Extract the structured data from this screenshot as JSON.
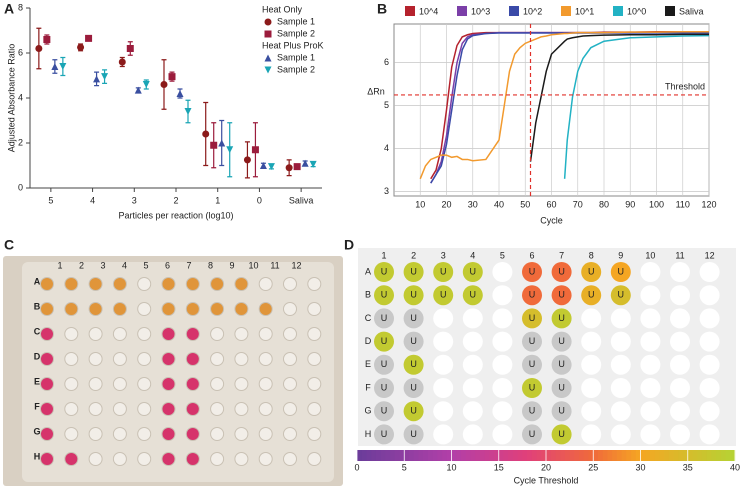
{
  "chart_data": [
    {
      "type": "errorbar",
      "panel": "A",
      "ylabel": "Adjusted Absorbance Ratio",
      "xlabel": "Particles per reaction (log10)",
      "categories": [
        "5",
        "4",
        "3",
        "2",
        "1",
        "0",
        "Saliva"
      ],
      "ylim": [
        0,
        8
      ],
      "yticks": [
        0,
        2,
        4,
        6,
        8
      ],
      "legend_groups": [
        "Heat Only",
        "Heat Plus ProK"
      ],
      "series": [
        {
          "name": "Sample 1",
          "color": "#8b1a1a",
          "marker": "circle",
          "values": [
            6.2,
            6.25,
            5.6,
            4.6,
            2.4,
            1.25,
            0.9
          ],
          "errors": [
            0.9,
            0.15,
            0.2,
            1.1,
            1.4,
            0.8,
            0.35
          ]
        },
        {
          "name": "Sample 2",
          "color": "#9b1c3c",
          "marker": "square",
          "values": [
            6.6,
            6.65,
            6.2,
            4.95,
            1.9,
            1.7,
            0.95
          ],
          "errors": [
            0.2,
            0.1,
            0.3,
            0.2,
            1.0,
            1.2,
            0.1
          ]
        },
        {
          "name": "Sample 1",
          "color": "#3a4fa0",
          "marker": "triangle-up",
          "values": [
            5.4,
            4.85,
            4.35,
            4.2,
            2.0,
            1.0,
            1.1
          ],
          "errors": [
            0.3,
            0.3,
            0.1,
            0.2,
            1.0,
            0.1,
            0.1
          ]
        },
        {
          "name": "Sample 2",
          "color": "#1aa5b5",
          "marker": "triangle-down",
          "values": [
            5.4,
            4.95,
            4.6,
            3.4,
            1.7,
            0.95,
            1.05
          ],
          "errors": [
            0.4,
            0.3,
            0.2,
            0.5,
            1.2,
            0.1,
            0.1
          ]
        }
      ]
    },
    {
      "type": "line",
      "panel": "B",
      "xlabel": "Cycle",
      "ylabel": "ΔRn",
      "x": [
        10,
        12,
        14,
        16,
        18,
        20,
        22,
        24,
        26,
        28,
        30,
        35,
        40,
        42,
        44,
        46,
        48,
        50,
        52,
        54,
        56,
        58,
        60,
        65,
        66,
        68,
        70,
        72,
        75,
        80,
        90,
        100,
        110,
        120
      ],
      "xlim": [
        0,
        120
      ],
      "xticks": [
        10,
        20,
        30,
        40,
        50,
        60,
        70,
        80,
        90,
        100,
        110,
        120
      ],
      "ylim": [
        2.9,
        6.9
      ],
      "yticks": [
        3,
        4,
        5,
        6
      ],
      "grid": true,
      "threshold": 5.25,
      "threshold_label": "Threshold",
      "cutoff": 52,
      "series": [
        {
          "name": "10^4",
          "color": "#b5222d",
          "values": [
            null,
            null,
            3.3,
            3.5,
            4.0,
            4.9,
            5.9,
            6.4,
            6.6,
            6.65,
            6.68,
            6.7,
            6.7,
            6.7,
            6.7,
            6.7,
            6.7,
            6.7,
            6.7,
            6.7,
            6.7,
            6.7,
            6.7,
            6.7,
            6.7,
            6.7,
            6.7,
            6.7,
            6.7,
            6.71,
            6.71,
            6.72,
            6.72,
            6.72
          ]
        },
        {
          "name": "10^3",
          "color": "#7b3fa8",
          "values": [
            null,
            null,
            3.2,
            3.4,
            3.7,
            4.3,
            5.2,
            6.0,
            6.45,
            6.6,
            6.65,
            6.68,
            6.7,
            6.7,
            6.7,
            6.7,
            6.7,
            6.7,
            6.7,
            6.7,
            6.7,
            6.7,
            6.7,
            6.7,
            6.7,
            6.7,
            6.7,
            6.7,
            6.7,
            6.7,
            6.7,
            6.7,
            6.7,
            6.7
          ]
        },
        {
          "name": "10^2",
          "color": "#3a4aa8",
          "values": [
            null,
            null,
            3.2,
            3.4,
            3.6,
            4.1,
            4.9,
            5.7,
            6.3,
            6.55,
            6.63,
            6.68,
            6.69,
            6.69,
            6.69,
            6.69,
            6.69,
            6.69,
            6.69,
            6.69,
            6.69,
            6.69,
            6.69,
            6.69,
            6.69,
            6.69,
            6.69,
            6.69,
            6.69,
            6.69,
            6.69,
            6.69,
            6.69,
            6.69
          ]
        },
        {
          "name": "10^1",
          "color": "#f29a2e",
          "values": [
            3.3,
            3.6,
            3.75,
            3.8,
            3.85,
            3.85,
            3.8,
            3.82,
            3.75,
            3.75,
            3.72,
            3.75,
            4.2,
            5.0,
            5.8,
            6.2,
            6.35,
            6.45,
            6.5,
            6.55,
            6.6,
            6.62,
            6.65,
            6.68,
            6.68,
            6.69,
            6.7,
            6.7,
            6.7,
            6.7,
            6.71,
            6.71,
            6.72,
            6.72
          ]
        },
        {
          "name": "10^0",
          "color": "#22b2c4",
          "values": [
            null,
            null,
            null,
            null,
            null,
            null,
            null,
            null,
            null,
            null,
            null,
            null,
            null,
            null,
            null,
            null,
            null,
            null,
            null,
            null,
            null,
            null,
            null,
            3.3,
            4.2,
            5.2,
            5.8,
            6.1,
            6.35,
            6.5,
            6.58,
            6.6,
            6.62,
            6.63
          ]
        },
        {
          "name": "Saliva",
          "color": "#1a1a1a",
          "values": [
            null,
            null,
            null,
            null,
            null,
            null,
            null,
            null,
            null,
            null,
            null,
            null,
            null,
            null,
            null,
            null,
            null,
            null,
            3.7,
            4.6,
            5.2,
            5.8,
            6.2,
            6.5,
            6.55,
            6.58,
            6.6,
            6.62,
            6.63,
            6.64,
            6.65,
            6.65,
            6.66,
            6.66
          ]
        }
      ]
    },
    {
      "type": "photo",
      "panel": "C",
      "row_labels": [
        "A",
        "B",
        "C",
        "D",
        "E",
        "F",
        "G",
        "H"
      ],
      "column_labels": [
        "1",
        "2",
        "3",
        "4",
        "5",
        "6",
        "7",
        "8",
        "9",
        "10",
        "11",
        "12"
      ]
    },
    {
      "type": "plate",
      "panel": "D",
      "row_labels": [
        "A",
        "B",
        "C",
        "D",
        "E",
        "F",
        "G",
        "H"
      ],
      "column_labels": [
        "1",
        "2",
        "3",
        "4",
        "5",
        "6",
        "7",
        "8",
        "9",
        "10",
        "11",
        "12"
      ],
      "labels": [
        [
          "U",
          "U",
          "U",
          "U",
          null,
          "U",
          "U",
          "U",
          "U",
          null,
          null,
          null
        ],
        [
          "U",
          "U",
          "U",
          "U",
          null,
          "U",
          "U",
          "U",
          "U",
          null,
          null,
          null
        ],
        [
          "U",
          "U",
          null,
          null,
          null,
          "U",
          "U",
          null,
          null,
          null,
          null,
          null
        ],
        [
          "U",
          "U",
          null,
          null,
          null,
          "U",
          "U",
          null,
          null,
          null,
          null,
          null
        ],
        [
          "U",
          "U",
          null,
          null,
          null,
          "U",
          "U",
          null,
          null,
          null,
          null,
          null
        ],
        [
          "U",
          "U",
          null,
          null,
          null,
          "U",
          "U",
          null,
          null,
          null,
          null,
          null
        ],
        [
          "U",
          "U",
          null,
          null,
          null,
          "U",
          "U",
          null,
          null,
          null,
          null,
          null
        ],
        [
          "U",
          "U",
          null,
          null,
          null,
          "U",
          "U",
          null,
          null,
          null,
          null,
          null
        ]
      ],
      "values": [
        [
          38,
          38,
          38,
          38,
          null,
          25,
          25,
          32,
          30,
          null,
          null,
          null
        ],
        [
          38,
          38,
          38,
          38,
          null,
          25,
          25,
          32,
          35,
          null,
          null,
          null
        ],
        [
          null,
          null,
          null,
          null,
          null,
          35,
          38,
          null,
          null,
          null,
          null,
          null
        ],
        [
          38,
          null,
          null,
          null,
          null,
          null,
          null,
          null,
          null,
          null,
          null,
          null
        ],
        [
          null,
          38,
          null,
          null,
          null,
          null,
          null,
          null,
          null,
          null,
          null,
          null
        ],
        [
          null,
          null,
          null,
          null,
          null,
          38,
          null,
          null,
          null,
          null,
          null,
          null
        ],
        [
          null,
          38,
          null,
          null,
          null,
          null,
          null,
          null,
          null,
          null,
          null,
          null
        ],
        [
          null,
          null,
          null,
          null,
          null,
          null,
          38,
          null,
          null,
          null,
          null,
          null
        ]
      ],
      "clim": [
        0,
        40
      ],
      "cticks": [
        0,
        5,
        10,
        15,
        20,
        25,
        30,
        35,
        40
      ],
      "clabel": "Cycle Threshold",
      "colorscale": [
        [
          0,
          "#6a3d9a"
        ],
        [
          10,
          "#b23fa8"
        ],
        [
          18,
          "#e0407a"
        ],
        [
          25,
          "#f06a3a"
        ],
        [
          30,
          "#f5a623"
        ],
        [
          40,
          "#b5d334"
        ]
      ]
    }
  ]
}
